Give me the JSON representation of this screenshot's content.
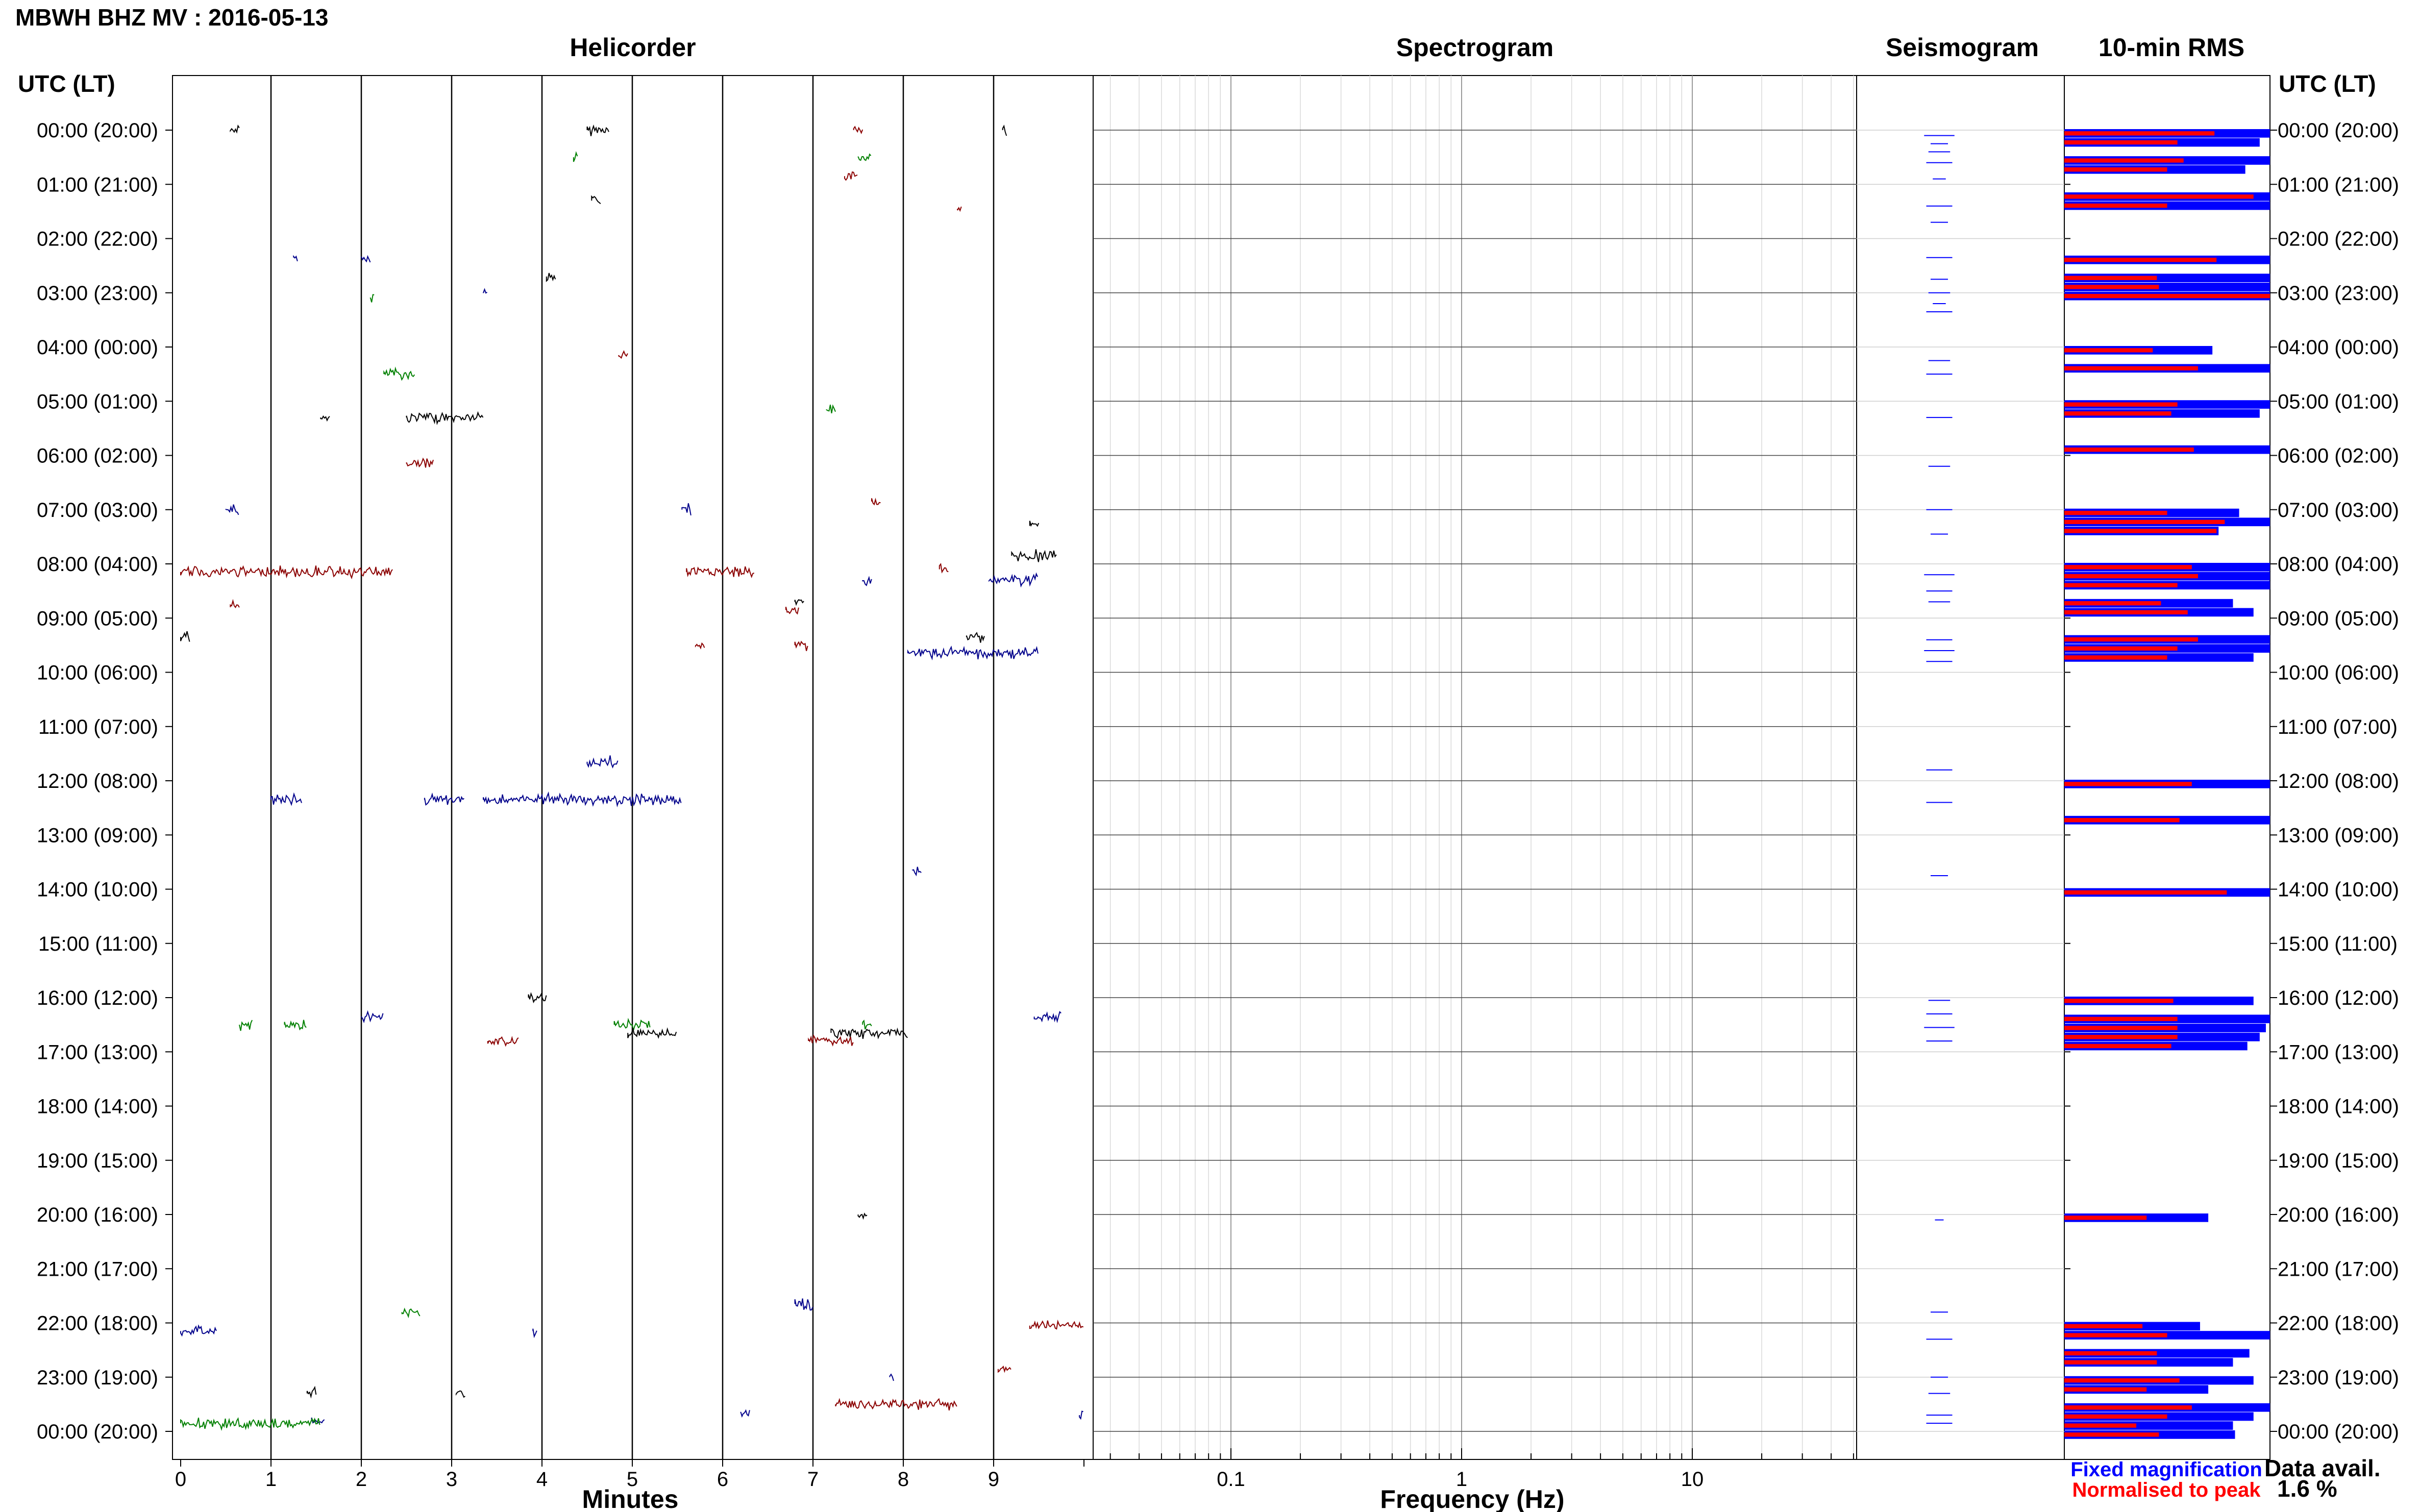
{
  "title": "MBWH BHZ MV : 2016-05-13",
  "panels": {
    "helicorder": "Helicorder",
    "spectrogram": "Spectrogram",
    "seismogram": "Seismogram",
    "rms": "10-min RMS"
  },
  "time_axis_title": "UTC (LT)",
  "time_labels": [
    "00:00 (20:00)",
    "01:00 (21:00)",
    "02:00 (22:00)",
    "03:00 (23:00)",
    "04:00 (00:00)",
    "05:00 (01:00)",
    "06:00 (02:00)",
    "07:00 (03:00)",
    "08:00 (04:00)",
    "09:00 (05:00)",
    "10:00 (06:00)",
    "11:00 (07:00)",
    "12:00 (08:00)",
    "13:00 (09:00)",
    "14:00 (10:00)",
    "15:00 (11:00)",
    "16:00 (12:00)",
    "17:00 (13:00)",
    "18:00 (14:00)",
    "19:00 (15:00)",
    "20:00 (16:00)",
    "21:00 (17:00)",
    "22:00 (18:00)",
    "23:00 (19:00)",
    "00:00 (20:00)"
  ],
  "minutes_ticks": [
    "0",
    "1",
    "2",
    "3",
    "4",
    "5",
    "6",
    "7",
    "8",
    "9"
  ],
  "minutes_label": "Minutes",
  "freq_ticks": [
    "0.1",
    "1",
    "10"
  ],
  "freq_label": "Frequency (Hz)",
  "legend": {
    "fixed": "Fixed magnification",
    "normalised": "Normalised to peak",
    "fixed_color": "#0000ff",
    "normalised_color": "#ff0000"
  },
  "data_avail": {
    "label": "Data avail.",
    "value": "1.6 %"
  },
  "chart_data": [
    {
      "type": "line",
      "panel": "Helicorder",
      "xlabel": "Minutes",
      "x_range": [
        0,
        10
      ],
      "trace_colors": [
        "#000000",
        "#8b0000",
        "#00008b",
        "#008000"
      ],
      "segments": [
        {
          "hour": 0.0,
          "x0": 0.55,
          "x1": 0.65,
          "c": 0
        },
        {
          "hour": 0.0,
          "x0": 4.5,
          "x1": 4.75,
          "c": 0
        },
        {
          "hour": 0.0,
          "x0": 7.45,
          "x1": 7.55,
          "c": 1
        },
        {
          "hour": 0.0,
          "x0": 9.1,
          "x1": 9.15,
          "c": 0
        },
        {
          "hour": 0.5,
          "x0": 4.35,
          "x1": 4.4,
          "c": 3
        },
        {
          "hour": 0.5,
          "x0": 7.5,
          "x1": 7.65,
          "c": 3
        },
        {
          "hour": 0.85,
          "x0": 7.35,
          "x1": 7.5,
          "c": 1
        },
        {
          "hour": 1.3,
          "x0": 4.55,
          "x1": 4.65,
          "c": 0
        },
        {
          "hour": 1.45,
          "x0": 8.6,
          "x1": 8.65,
          "c": 1
        },
        {
          "hour": 2.35,
          "x0": 1.25,
          "x1": 1.3,
          "c": 2
        },
        {
          "hour": 2.35,
          "x0": 2.0,
          "x1": 2.1,
          "c": 2
        },
        {
          "hour": 2.7,
          "x0": 4.05,
          "x1": 4.15,
          "c": 0
        },
        {
          "hour": 3.1,
          "x0": 2.1,
          "x1": 2.15,
          "c": 3
        },
        {
          "hour": 3.0,
          "x0": 3.35,
          "x1": 3.4,
          "c": 2
        },
        {
          "hour": 4.15,
          "x0": 4.85,
          "x1": 4.95,
          "c": 1
        },
        {
          "hour": 4.5,
          "x0": 2.25,
          "x1": 2.6,
          "c": 3
        },
        {
          "hour": 5.3,
          "x0": 1.55,
          "x1": 1.65,
          "c": 0
        },
        {
          "hour": 5.3,
          "x0": 2.5,
          "x1": 3.35,
          "c": 0
        },
        {
          "hour": 5.15,
          "x0": 7.15,
          "x1": 7.25,
          "c": 3
        },
        {
          "hour": 6.15,
          "x0": 2.5,
          "x1": 2.8,
          "c": 1
        },
        {
          "hour": 7.0,
          "x0": 0.5,
          "x1": 0.65,
          "c": 2
        },
        {
          "hour": 7.0,
          "x0": 5.55,
          "x1": 5.65,
          "c": 2
        },
        {
          "hour": 6.85,
          "x0": 7.65,
          "x1": 7.75,
          "c": 1
        },
        {
          "hour": 7.3,
          "x0": 9.4,
          "x1": 9.5,
          "c": 0
        },
        {
          "hour": 7.85,
          "x0": 9.2,
          "x1": 9.7,
          "c": 0
        },
        {
          "hour": 8.15,
          "x0": 0.0,
          "x1": 2.35,
          "c": 1
        },
        {
          "hour": 8.15,
          "x0": 5.6,
          "x1": 6.35,
          "c": 1
        },
        {
          "hour": 8.1,
          "x0": 8.4,
          "x1": 8.5,
          "c": 1
        },
        {
          "hour": 8.3,
          "x0": 7.55,
          "x1": 7.65,
          "c": 2
        },
        {
          "hour": 8.3,
          "x0": 8.95,
          "x1": 9.5,
          "c": 2
        },
        {
          "hour": 8.7,
          "x0": 6.8,
          "x1": 6.9,
          "c": 0
        },
        {
          "hour": 8.85,
          "x0": 6.7,
          "x1": 6.85,
          "c": 1
        },
        {
          "hour": 8.8,
          "x0": 0.55,
          "x1": 0.65,
          "c": 1
        },
        {
          "hour": 9.35,
          "x0": 8.7,
          "x1": 8.9,
          "c": 0
        },
        {
          "hour": 9.5,
          "x0": 5.7,
          "x1": 5.8,
          "c": 1
        },
        {
          "hour": 9.5,
          "x0": 6.8,
          "x1": 6.95,
          "c": 1
        },
        {
          "hour": 9.65,
          "x0": 8.05,
          "x1": 9.5,
          "c": 2
        },
        {
          "hour": 9.35,
          "x0": 0.0,
          "x1": 0.1,
          "c": 0
        },
        {
          "hour": 11.65,
          "x0": 4.5,
          "x1": 4.85,
          "c": 2
        },
        {
          "hour": 12.35,
          "x0": 1.0,
          "x1": 1.35,
          "c": 2
        },
        {
          "hour": 12.35,
          "x0": 2.7,
          "x1": 3.15,
          "c": 2
        },
        {
          "hour": 12.35,
          "x0": 3.35,
          "x1": 5.55,
          "c": 2
        },
        {
          "hour": 13.65,
          "x0": 8.1,
          "x1": 8.2,
          "c": 2
        },
        {
          "hour": 16.0,
          "x0": 3.85,
          "x1": 4.05,
          "c": 0
        },
        {
          "hour": 16.35,
          "x0": 2.0,
          "x1": 2.25,
          "c": 2
        },
        {
          "hour": 16.35,
          "x0": 9.45,
          "x1": 9.75,
          "c": 2
        },
        {
          "hour": 16.5,
          "x0": 0.65,
          "x1": 0.8,
          "c": 3
        },
        {
          "hour": 16.5,
          "x0": 1.15,
          "x1": 1.4,
          "c": 3
        },
        {
          "hour": 16.5,
          "x0": 4.8,
          "x1": 5.2,
          "c": 3
        },
        {
          "hour": 16.5,
          "x0": 7.55,
          "x1": 7.65,
          "c": 3
        },
        {
          "hour": 16.65,
          "x0": 4.95,
          "x1": 5.5,
          "c": 0
        },
        {
          "hour": 16.65,
          "x0": 7.2,
          "x1": 8.05,
          "c": 0
        },
        {
          "hour": 16.8,
          "x0": 3.4,
          "x1": 3.75,
          "c": 1
        },
        {
          "hour": 16.8,
          "x0": 6.95,
          "x1": 7.45,
          "c": 1
        },
        {
          "hour": 20.0,
          "x0": 7.5,
          "x1": 7.6,
          "c": 0
        },
        {
          "hour": 21.8,
          "x0": 2.45,
          "x1": 2.65,
          "c": 3
        },
        {
          "hour": 21.65,
          "x0": 6.8,
          "x1": 7.0,
          "c": 2
        },
        {
          "hour": 22.15,
          "x0": 0.0,
          "x1": 0.4,
          "c": 2
        },
        {
          "hour": 22.15,
          "x0": 3.9,
          "x1": 3.95,
          "c": 2
        },
        {
          "hour": 22.05,
          "x0": 9.4,
          "x1": 10.0,
          "c": 1
        },
        {
          "hour": 22.85,
          "x0": 9.05,
          "x1": 9.2,
          "c": 1
        },
        {
          "hour": 23.0,
          "x0": 7.85,
          "x1": 7.9,
          "c": 2
        },
        {
          "hour": 23.3,
          "x0": 1.4,
          "x1": 1.5,
          "c": 0
        },
        {
          "hour": 23.3,
          "x0": 3.05,
          "x1": 3.15,
          "c": 0
        },
        {
          "hour": 23.5,
          "x0": 7.25,
          "x1": 8.6,
          "c": 1
        },
        {
          "hour": 23.65,
          "x0": 6.2,
          "x1": 6.3,
          "c": 2
        },
        {
          "hour": 23.8,
          "x0": 1.45,
          "x1": 1.6,
          "c": 2
        },
        {
          "hour": 23.85,
          "x0": 0.0,
          "x1": 1.55,
          "c": 3
        },
        {
          "hour": 23.7,
          "x0": 9.95,
          "x1": 10.0,
          "c": 2
        }
      ]
    },
    {
      "type": "heatmap",
      "panel": "Spectrogram",
      "xlabel": "Frequency (Hz)",
      "x_scale": "log",
      "x_range": [
        0.025,
        50
      ],
      "x_ticks": [
        0.1,
        1,
        10
      ]
    },
    {
      "type": "line",
      "panel": "Seismogram",
      "color": "#0000ff",
      "traces": [
        {
          "hour": 0.1,
          "w": 0.35
        },
        {
          "hour": 0.25,
          "w": 0.2
        },
        {
          "hour": 0.4,
          "w": 0.25
        },
        {
          "hour": 0.6,
          "w": 0.3
        },
        {
          "hour": 0.9,
          "w": 0.15
        },
        {
          "hour": 1.4,
          "w": 0.3
        },
        {
          "hour": 1.7,
          "w": 0.2
        },
        {
          "hour": 2.35,
          "w": 0.3
        },
        {
          "hour": 2.75,
          "w": 0.2
        },
        {
          "hour": 3.0,
          "w": 0.25
        },
        {
          "hour": 3.2,
          "w": 0.15
        },
        {
          "hour": 3.35,
          "w": 0.3
        },
        {
          "hour": 4.25,
          "w": 0.25
        },
        {
          "hour": 4.5,
          "w": 0.3
        },
        {
          "hour": 5.3,
          "w": 0.3
        },
        {
          "hour": 6.2,
          "w": 0.25
        },
        {
          "hour": 7.0,
          "w": 0.3
        },
        {
          "hour": 7.45,
          "w": 0.2
        },
        {
          "hour": 8.2,
          "w": 0.35
        },
        {
          "hour": 8.5,
          "w": 0.3
        },
        {
          "hour": 8.7,
          "w": 0.25
        },
        {
          "hour": 9.4,
          "w": 0.3
        },
        {
          "hour": 9.6,
          "w": 0.35
        },
        {
          "hour": 9.8,
          "w": 0.3
        },
        {
          "hour": 11.8,
          "w": 0.3
        },
        {
          "hour": 12.4,
          "w": 0.3
        },
        {
          "hour": 13.75,
          "w": 0.2
        },
        {
          "hour": 16.05,
          "w": 0.25
        },
        {
          "hour": 16.3,
          "w": 0.3
        },
        {
          "hour": 16.55,
          "w": 0.35
        },
        {
          "hour": 16.8,
          "w": 0.3
        },
        {
          "hour": 20.1,
          "w": 0.1
        },
        {
          "hour": 21.8,
          "w": 0.2
        },
        {
          "hour": 22.3,
          "w": 0.3
        },
        {
          "hour": 23.0,
          "w": 0.2
        },
        {
          "hour": 23.3,
          "w": 0.25
        },
        {
          "hour": 23.7,
          "w": 0.3
        },
        {
          "hour": 23.85,
          "w": 0.3
        }
      ]
    },
    {
      "type": "bar",
      "panel": "10-min RMS",
      "series": [
        {
          "name": "Fixed magnification",
          "color": "#0000ff"
        },
        {
          "name": "Normalised to peak",
          "color": "#ff0000"
        }
      ],
      "rows": [
        {
          "bin": 0,
          "fixed": 1.0,
          "norm": 0.73
        },
        {
          "bin": 1,
          "fixed": 0.95,
          "norm": 0.55
        },
        {
          "bin": 3,
          "fixed": 1.0,
          "norm": 0.58
        },
        {
          "bin": 4,
          "fixed": 0.88,
          "norm": 0.5
        },
        {
          "bin": 7,
          "fixed": 1.0,
          "norm": 0.92
        },
        {
          "bin": 8,
          "fixed": 1.0,
          "norm": 0.5
        },
        {
          "bin": 14,
          "fixed": 1.0,
          "norm": 0.74
        },
        {
          "bin": 16,
          "fixed": 1.0,
          "norm": 0.45
        },
        {
          "bin": 17,
          "fixed": 1.0,
          "norm": 0.46
        },
        {
          "bin": 18,
          "fixed": 1.0,
          "norm": 1.0
        },
        {
          "bin": 24,
          "fixed": 0.72,
          "norm": 0.43
        },
        {
          "bin": 26,
          "fixed": 1.0,
          "norm": 0.65
        },
        {
          "bin": 30,
          "fixed": 1.0,
          "norm": 0.55
        },
        {
          "bin": 31,
          "fixed": 0.95,
          "norm": 0.52
        },
        {
          "bin": 35,
          "fixed": 1.0,
          "norm": 0.63
        },
        {
          "bin": 42,
          "fixed": 0.85,
          "norm": 0.5
        },
        {
          "bin": 43,
          "fixed": 1.0,
          "norm": 0.78
        },
        {
          "bin": 44,
          "fixed": 0.75,
          "norm": 0.74
        },
        {
          "bin": 48,
          "fixed": 1.0,
          "norm": 0.62
        },
        {
          "bin": 49,
          "fixed": 1.0,
          "norm": 0.65
        },
        {
          "bin": 50,
          "fixed": 1.0,
          "norm": 0.55
        },
        {
          "bin": 52,
          "fixed": 0.82,
          "norm": 0.47
        },
        {
          "bin": 53,
          "fixed": 0.92,
          "norm": 0.6
        },
        {
          "bin": 56,
          "fixed": 1.0,
          "norm": 0.65
        },
        {
          "bin": 57,
          "fixed": 1.0,
          "norm": 0.55
        },
        {
          "bin": 58,
          "fixed": 0.92,
          "norm": 0.5
        },
        {
          "bin": 72,
          "fixed": 1.0,
          "norm": 0.62
        },
        {
          "bin": 76,
          "fixed": 1.0,
          "norm": 0.56
        },
        {
          "bin": 84,
          "fixed": 1.0,
          "norm": 0.79
        },
        {
          "bin": 96,
          "fixed": 0.92,
          "norm": 0.53
        },
        {
          "bin": 98,
          "fixed": 1.0,
          "norm": 0.55
        },
        {
          "bin": 99,
          "fixed": 0.98,
          "norm": 0.55
        },
        {
          "bin": 100,
          "fixed": 0.95,
          "norm": 0.55
        },
        {
          "bin": 101,
          "fixed": 0.89,
          "norm": 0.52
        },
        {
          "bin": 120,
          "fixed": 0.7,
          "norm": 0.4
        },
        {
          "bin": 132,
          "fixed": 0.66,
          "norm": 0.38
        },
        {
          "bin": 133,
          "fixed": 1.0,
          "norm": 0.5
        },
        {
          "bin": 135,
          "fixed": 0.9,
          "norm": 0.45
        },
        {
          "bin": 136,
          "fixed": 0.82,
          "norm": 0.45
        },
        {
          "bin": 138,
          "fixed": 0.92,
          "norm": 0.56
        },
        {
          "bin": 139,
          "fixed": 0.7,
          "norm": 0.4
        },
        {
          "bin": 141,
          "fixed": 1.0,
          "norm": 0.62
        },
        {
          "bin": 142,
          "fixed": 0.92,
          "norm": 0.5
        },
        {
          "bin": 143,
          "fixed": 0.82,
          "norm": 0.35
        },
        {
          "bin": 144,
          "fixed": 0.83,
          "norm": 0.46
        }
      ]
    }
  ]
}
